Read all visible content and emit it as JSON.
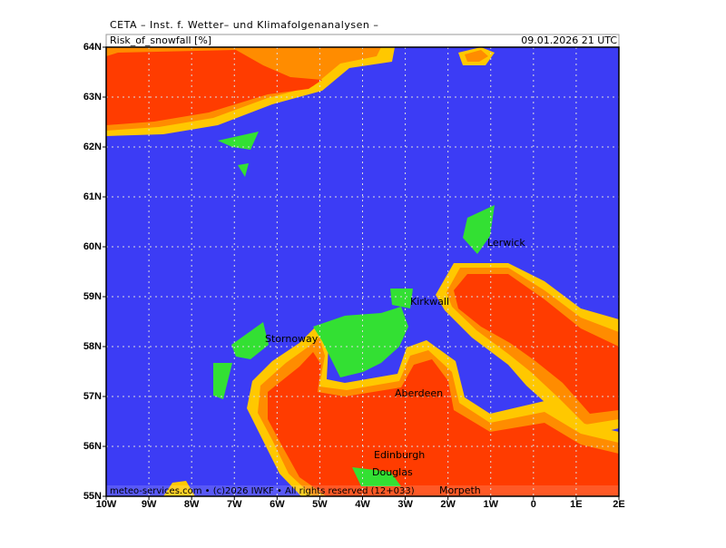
{
  "header": {
    "title": "CETA – Inst. f. Wetter– und Klimafolgenanalysen –",
    "parameter": "Risk_of_snowfall [%]",
    "valid_time": "09.01.2026 21 UTC"
  },
  "map": {
    "lat_labels": [
      "64N",
      "63N",
      "62N",
      "61N",
      "60N",
      "59N",
      "58N",
      "57N",
      "56N",
      "55N"
    ],
    "lon_labels": [
      "10W",
      "9W",
      "8W",
      "7W",
      "6W",
      "5W",
      "4W",
      "3W",
      "2W",
      "1W",
      "0",
      "1E",
      "2E"
    ],
    "places": [
      "Lerwick",
      "Kirkwall",
      "Stornoway",
      "Aberdeen",
      "Edinburgh",
      "Douglas",
      "Morpeth"
    ]
  },
  "footer": "meteo-services.com • (c)2026 IWKF • All rights reserved (12+033)"
}
